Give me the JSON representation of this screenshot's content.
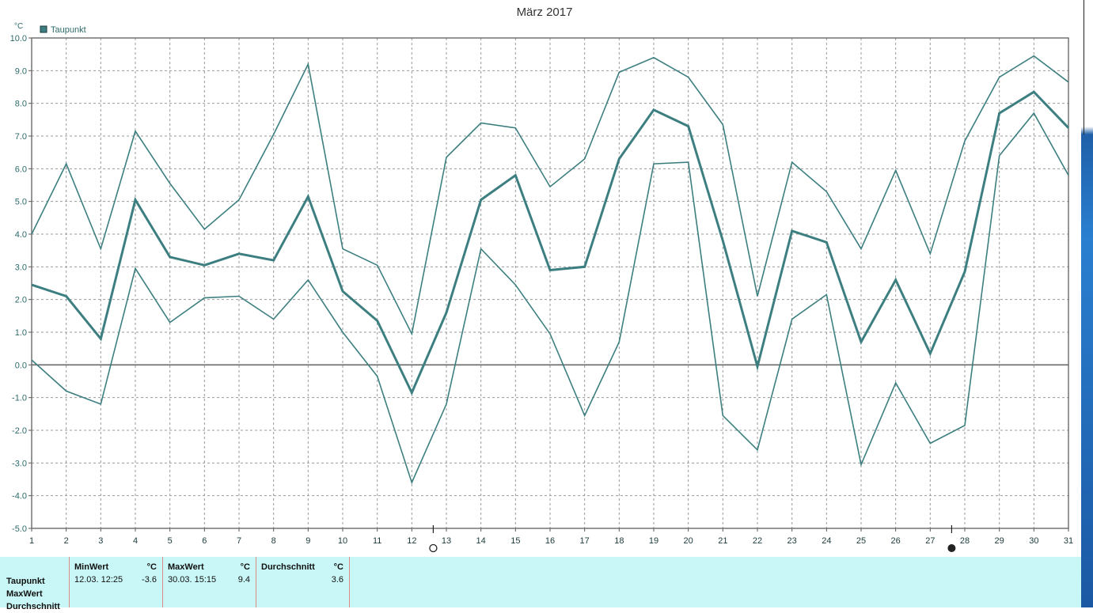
{
  "chart_data": {
    "type": "line",
    "title": "März 2017",
    "unit": "°C",
    "ylim": [
      -5.0,
      10.0
    ],
    "y_ticks": [
      "10.0",
      "9.0",
      "8.0",
      "7.0",
      "6.0",
      "5.0",
      "4.0",
      "3.0",
      "2.0",
      "1.0",
      "0.0",
      "-1.0",
      "-2.0",
      "-3.0",
      "-4.0",
      "-5.0"
    ],
    "y_tick_values": [
      10,
      9,
      8,
      7,
      6,
      5,
      4,
      3,
      2,
      1,
      0,
      -1,
      -2,
      -3,
      -4,
      -5
    ],
    "categories": [
      "1",
      "2",
      "3",
      "4",
      "5",
      "6",
      "7",
      "8",
      "9",
      "10",
      "11",
      "12",
      "13",
      "14",
      "15",
      "16",
      "17",
      "18",
      "19",
      "20",
      "21",
      "22",
      "23",
      "24",
      "25",
      "26",
      "27",
      "28",
      "29",
      "30",
      "31"
    ],
    "legend": [
      "Taupunkt"
    ],
    "legend_placement": "top-left",
    "grid": true,
    "color": "#3d7f80",
    "series": [
      {
        "values": [
          4.0,
          6.15,
          3.55,
          7.15,
          5.55,
          4.15,
          5.05,
          7.05,
          9.2,
          3.55,
          3.05,
          0.95,
          6.35,
          7.4,
          7.25,
          5.45,
          6.3,
          8.95,
          9.4,
          8.8,
          7.35,
          2.1,
          6.2,
          5.3,
          3.55,
          5.95,
          3.4,
          6.85,
          8.8,
          9.45,
          8.65
        ]
      },
      {
        "values": [
          2.45,
          2.1,
          0.8,
          5.05,
          3.3,
          3.05,
          3.4,
          3.2,
          5.15,
          2.25,
          1.35,
          -0.85,
          1.6,
          5.05,
          5.8,
          2.9,
          3.0,
          6.3,
          7.8,
          7.3,
          3.8,
          -0.05,
          4.1,
          3.75,
          0.7,
          2.6,
          0.35,
          2.85,
          7.7,
          8.35,
          7.25
        ]
      },
      {
        "values": [
          0.15,
          -0.8,
          -1.2,
          2.95,
          1.3,
          2.05,
          2.1,
          1.4,
          2.6,
          1.0,
          -0.35,
          -3.6,
          -1.2,
          3.55,
          2.45,
          0.95,
          -1.55,
          0.7,
          6.15,
          6.2,
          -1.55,
          -2.6,
          1.4,
          2.15,
          -3.05,
          -0.55,
          -2.4,
          -1.85,
          6.4,
          7.7,
          5.8
        ]
      }
    ],
    "moon_phases": [
      {
        "after_day": 12,
        "phase": "full-moon"
      },
      {
        "after_day": 27,
        "phase": "new-moon"
      }
    ]
  },
  "stats": {
    "row_labels": [
      "Taupunkt",
      "MaxWert",
      "Durchschnitt"
    ],
    "min_header": "MinWert",
    "min_unit": "°C",
    "min_date": "12.03.  12:25",
    "min_value": "-3.6",
    "max_header": "MaxWert",
    "max_unit": "°C",
    "max_date": "30.03.  15:15",
    "max_value": "9.4",
    "avg_header": "Durchschnitt",
    "avg_unit": "°C",
    "avg_value": "3.6"
  }
}
